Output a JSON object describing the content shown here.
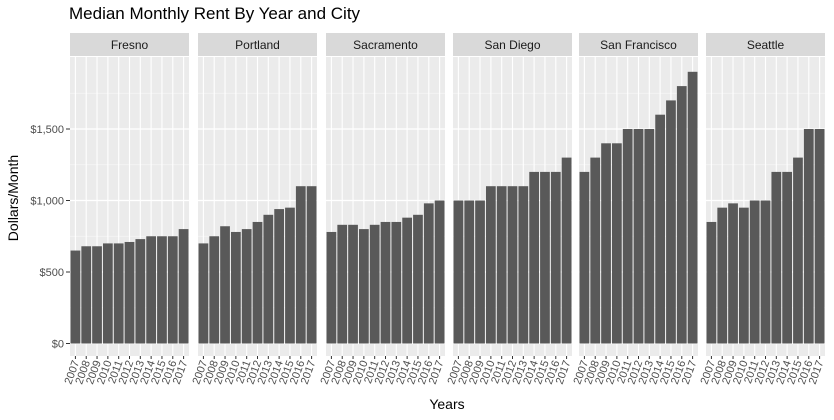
{
  "title": "Median Monthly Rent By Year and City",
  "ylabel": "Dollars/Month",
  "xlabel": "Years",
  "colors": {
    "bar": "#595959",
    "panel": "#ebebeb",
    "strip": "#d9d9d9",
    "grid_major": "#ffffff",
    "grid_minor": "#f5f5f5",
    "text": "#4d4d4d"
  },
  "chart_data": {
    "type": "bar",
    "title": "Median Monthly Rent By Year and City",
    "xlabel": "Years",
    "ylabel": "Dollars/Month",
    "ylim": [
      0,
      2000
    ],
    "y_ticks": [
      {
        "value": 0,
        "label": "$0"
      },
      {
        "value": 500,
        "label": "$500"
      },
      {
        "value": 1000,
        "label": "$1,000"
      },
      {
        "value": 1500,
        "label": "$1,500"
      }
    ],
    "categories": [
      "2007",
      "2008",
      "2009",
      "2010",
      "2011",
      "2012",
      "2013",
      "2014",
      "2015",
      "2016",
      "2017"
    ],
    "series": [
      {
        "name": "Fresno",
        "values": [
          650,
          680,
          680,
          700,
          700,
          710,
          730,
          750,
          750,
          750,
          800
        ]
      },
      {
        "name": "Portland",
        "values": [
          700,
          750,
          820,
          780,
          800,
          850,
          900,
          940,
          950,
          1100,
          1100
        ]
      },
      {
        "name": "Sacramento",
        "values": [
          780,
          830,
          830,
          800,
          830,
          850,
          850,
          880,
          900,
          980,
          1000
        ]
      },
      {
        "name": "San Diego",
        "values": [
          1000,
          1000,
          1000,
          1100,
          1100,
          1100,
          1100,
          1200,
          1200,
          1200,
          1300
        ]
      },
      {
        "name": "San Francisco",
        "values": [
          1200,
          1300,
          1400,
          1400,
          1500,
          1500,
          1500,
          1600,
          1700,
          1800,
          1900
        ]
      },
      {
        "name": "Seattle",
        "values": [
          850,
          950,
          980,
          950,
          1000,
          1000,
          1200,
          1200,
          1300,
          1500,
          1500
        ]
      }
    ],
    "grid": true,
    "legend": "none"
  }
}
